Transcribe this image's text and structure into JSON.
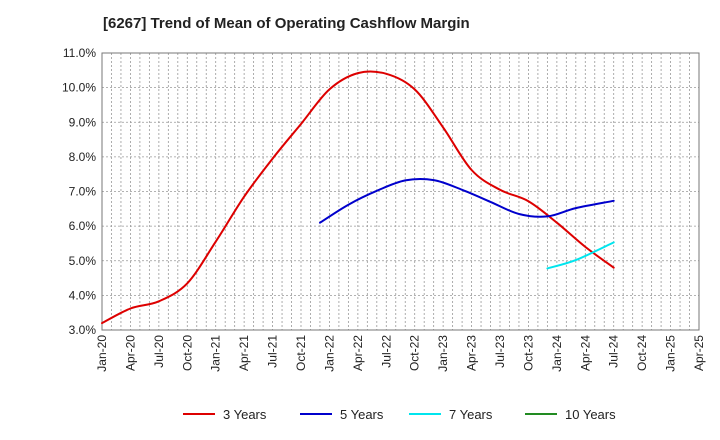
{
  "chart_data": {
    "type": "line",
    "title": "[6267]  Trend of Mean of Operating Cashflow Margin",
    "xlabel": "",
    "ylabel": "",
    "ylim": [
      3.0,
      11.0
    ],
    "y_ticks": [
      "3.0%",
      "4.0%",
      "5.0%",
      "6.0%",
      "7.0%",
      "8.0%",
      "9.0%",
      "10.0%",
      "11.0%"
    ],
    "x_ticks": [
      "Jan-20",
      "Apr-20",
      "Jul-20",
      "Oct-20",
      "Jan-21",
      "Apr-21",
      "Jul-21",
      "Oct-21",
      "Jan-22",
      "Apr-22",
      "Jul-22",
      "Oct-22",
      "Jan-23",
      "Apr-23",
      "Jul-23",
      "Oct-23",
      "Jan-24",
      "Apr-24",
      "Jul-24",
      "Oct-24",
      "Jan-25",
      "Apr-25"
    ],
    "grid": true,
    "legend_position": "bottom",
    "series": [
      {
        "name": "3 Years",
        "color": "#dd0000",
        "points": [
          [
            "Jan-20",
            3.2
          ],
          [
            "Apr-20",
            3.62
          ],
          [
            "Jul-20",
            3.83
          ],
          [
            "Oct-20",
            4.35
          ],
          [
            "Jan-21",
            5.55
          ],
          [
            "Apr-21",
            6.85
          ],
          [
            "Jul-21",
            7.95
          ],
          [
            "Oct-21",
            8.95
          ],
          [
            "Jan-22",
            9.95
          ],
          [
            "Apr-22",
            10.42
          ],
          [
            "Jul-22",
            10.4
          ],
          [
            "Oct-22",
            9.95
          ],
          [
            "Jan-23",
            8.85
          ],
          [
            "Apr-23",
            7.62
          ],
          [
            "Jul-23",
            7.05
          ],
          [
            "Oct-23",
            6.72
          ],
          [
            "Jan-24",
            6.1
          ],
          [
            "Apr-24",
            5.4
          ],
          [
            "Jul-24",
            4.8
          ]
        ]
      },
      {
        "name": "5 Years",
        "color": "#0000cc",
        "points": [
          [
            "Dec-21",
            6.1
          ],
          [
            "Mar-22",
            6.62
          ],
          [
            "Jun-22",
            7.02
          ],
          [
            "Sep-22",
            7.32
          ],
          [
            "Dec-22",
            7.33
          ],
          [
            "Mar-23",
            7.05
          ],
          [
            "Jun-23",
            6.7
          ],
          [
            "Sep-23",
            6.35
          ],
          [
            "Dec-23",
            6.28
          ],
          [
            "Mar-24",
            6.52
          ],
          [
            "Jul-24",
            6.73
          ]
        ]
      },
      {
        "name": "7 Years",
        "color": "#00e5ee",
        "points": [
          [
            "Dec-23",
            4.78
          ],
          [
            "Mar-24",
            5.02
          ],
          [
            "Jul-24",
            5.53
          ]
        ]
      },
      {
        "name": "10 Years",
        "color": "#228b22",
        "points": []
      }
    ]
  }
}
